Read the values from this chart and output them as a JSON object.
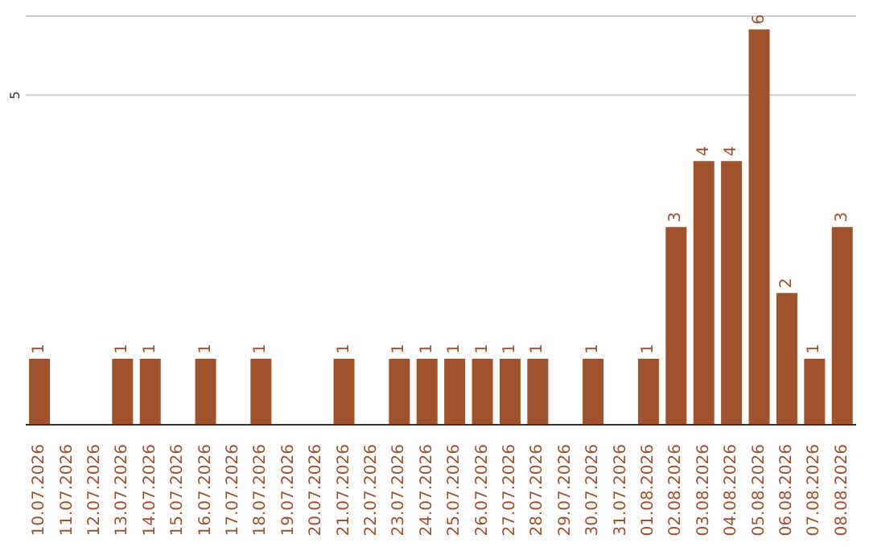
{
  "chart_data": {
    "type": "bar",
    "categories": [
      "10.07.2026",
      "11.07.2026",
      "12.07.2026",
      "13.07.2026",
      "14.07.2026",
      "15.07.2026",
      "16.07.2026",
      "17.07.2026",
      "18.07.2026",
      "19.07.2026",
      "20.07.2026",
      "21.07.2026",
      "22.07.2026",
      "23.07.2026",
      "24.07.2026",
      "25.07.2026",
      "26.07.2026",
      "27.07.2026",
      "28.07.2026",
      "29.07.2026",
      "30.07.2026",
      "31.07.2026",
      "01.08.2026",
      "02.08.2026",
      "03.08.2026",
      "04.08.2026",
      "05.08.2026",
      "06.08.2026",
      "07.08.2026",
      "08.08.2026"
    ],
    "values": [
      1,
      0,
      0,
      1,
      1,
      0,
      1,
      0,
      1,
      0,
      0,
      1,
      0,
      1,
      1,
      1,
      1,
      1,
      1,
      0,
      1,
      0,
      1,
      3,
      4,
      4,
      6,
      2,
      1,
      3
    ],
    "value_labels": [
      "1",
      null,
      null,
      "1",
      "1",
      null,
      "1",
      null,
      "1",
      null,
      null,
      "1",
      null,
      "1",
      "1",
      "1",
      "1",
      "1",
      "1",
      null,
      "1",
      null,
      "1",
      "3",
      "4",
      "4",
      "6",
      "2",
      "1",
      "3"
    ],
    "color": "#a0522d",
    "ylim": [
      0,
      6.2
    ],
    "yticks": [
      5
    ],
    "grid": "y"
  }
}
